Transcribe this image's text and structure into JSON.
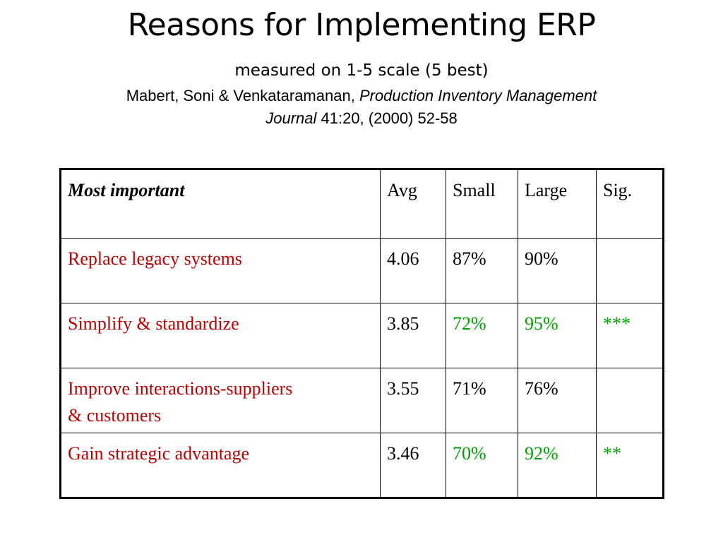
{
  "header": {
    "title": "Reasons for Implementing ERP",
    "subtitle": "measured on 1-5 scale (5 best)",
    "citation_authors": "Mabert, Soni & Venkataramanan, ",
    "citation_journal_part1": "Production Inventory Management",
    "citation_journal_part2": "Journal",
    "citation_tail": " 41:20, (2000) 52-58"
  },
  "colors": {
    "reason_text": "#c00000",
    "highlight_green": "#00a000",
    "default_text": "#000000"
  },
  "table": {
    "headers": {
      "reason": "Most important",
      "avg": "Avg",
      "small": "Small",
      "large": "Large",
      "sig": "Sig."
    },
    "rows": [
      {
        "reason_line1": "Replace legacy systems",
        "reason_line2": "",
        "avg": "4.06",
        "small": "87%",
        "large": "90%",
        "sig": ""
      },
      {
        "reason_line1": "Simplify & standardize",
        "reason_line2": "",
        "avg": "3.85",
        "small": "72%",
        "large": "95%",
        "sig": "***"
      },
      {
        "reason_line1": "Improve interactions-suppliers",
        "reason_line2": "& customers",
        "avg": "3.55",
        "small": "71%",
        "large": "76%",
        "sig": ""
      },
      {
        "reason_line1": "Gain strategic advantage",
        "reason_line2": "",
        "avg": "3.46",
        "small": "70%",
        "large": "92%",
        "sig": "**"
      }
    ],
    "green_rows": [
      1,
      3
    ]
  }
}
